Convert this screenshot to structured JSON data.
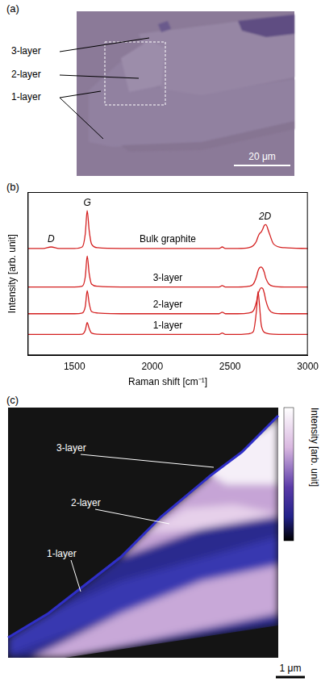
{
  "panel_a": {
    "label": "(a)",
    "layer_labels": [
      "3-layer",
      "2-layer",
      "1-layer"
    ],
    "scale_bar": "20 μm"
  },
  "chart_data": {
    "label": "(b)",
    "type": "line",
    "color": "#d42020",
    "x_label": "Raman shift [cm⁻¹]",
    "y_label": "Intensity [arb. unit]",
    "x": [
      1200,
      1300,
      1350,
      1400,
      1500,
      1550,
      1570,
      1582,
      1595,
      1610,
      1650,
      1800,
      2000,
      2300,
      2430,
      2450,
      2470,
      2550,
      2620,
      2650,
      2670,
      2680,
      2690,
      2700,
      2710,
      2720,
      2730,
      2750,
      2780,
      2850,
      3000
    ],
    "series": [
      {
        "name": "Bulk graphite",
        "values": [
          7.2,
          7.2,
          7.3,
          7.2,
          7.2,
          7.3,
          8.2,
          9.75,
          8.4,
          7.5,
          7.25,
          7.2,
          7.2,
          7.2,
          7.2,
          7.3,
          7.2,
          7.2,
          7.25,
          7.4,
          7.7,
          8.0,
          8.2,
          8.3,
          8.5,
          8.75,
          8.8,
          8.3,
          7.5,
          7.25,
          7.2
        ]
      },
      {
        "name": "3-layer",
        "values": [
          4.6,
          4.6,
          4.6,
          4.6,
          4.6,
          4.65,
          5.3,
          6.7,
          5.5,
          4.8,
          4.65,
          4.6,
          4.6,
          4.6,
          4.6,
          4.7,
          4.6,
          4.6,
          4.65,
          4.8,
          5.3,
          5.7,
          5.9,
          5.95,
          5.85,
          5.6,
          5.2,
          4.8,
          4.65,
          4.6,
          4.6
        ]
      },
      {
        "name": "2-layer",
        "values": [
          2.8,
          2.8,
          2.8,
          2.8,
          2.8,
          2.85,
          3.3,
          4.35,
          3.5,
          2.95,
          2.85,
          2.8,
          2.8,
          2.8,
          2.8,
          2.9,
          2.8,
          2.8,
          2.85,
          3.0,
          3.6,
          4.1,
          4.4,
          4.55,
          4.5,
          4.2,
          3.7,
          3.1,
          2.85,
          2.8,
          2.8
        ]
      },
      {
        "name": "1-layer",
        "values": [
          1.4,
          1.4,
          1.4,
          1.4,
          1.4,
          1.42,
          1.7,
          2.2,
          1.8,
          1.5,
          1.42,
          1.4,
          1.4,
          1.4,
          1.4,
          1.5,
          1.4,
          1.4,
          1.45,
          1.6,
          3.0,
          4.3,
          3.3,
          2.1,
          1.7,
          1.55,
          1.5,
          1.45,
          1.42,
          1.4,
          1.4
        ]
      }
    ],
    "annotations": [
      {
        "text": "G",
        "x": 1582,
        "y": 10.25
      },
      {
        "text": "D",
        "x": 1350,
        "y": 7.8
      },
      {
        "text": "2D",
        "x": 2725,
        "y": 9.35
      }
    ],
    "xlim": [
      1200,
      3000
    ],
    "xticks": [
      1500,
      2000,
      2500,
      3000
    ],
    "ylim": [
      0,
      11
    ],
    "tick_labels": "x",
    "grid": false
  },
  "panel_c": {
    "label": "(c)",
    "layer_labels": [
      "3-layer",
      "2-layer",
      "1-layer"
    ],
    "colorbar_label": "Intensity [arb. unit]",
    "scale_bar": "1 μm"
  }
}
